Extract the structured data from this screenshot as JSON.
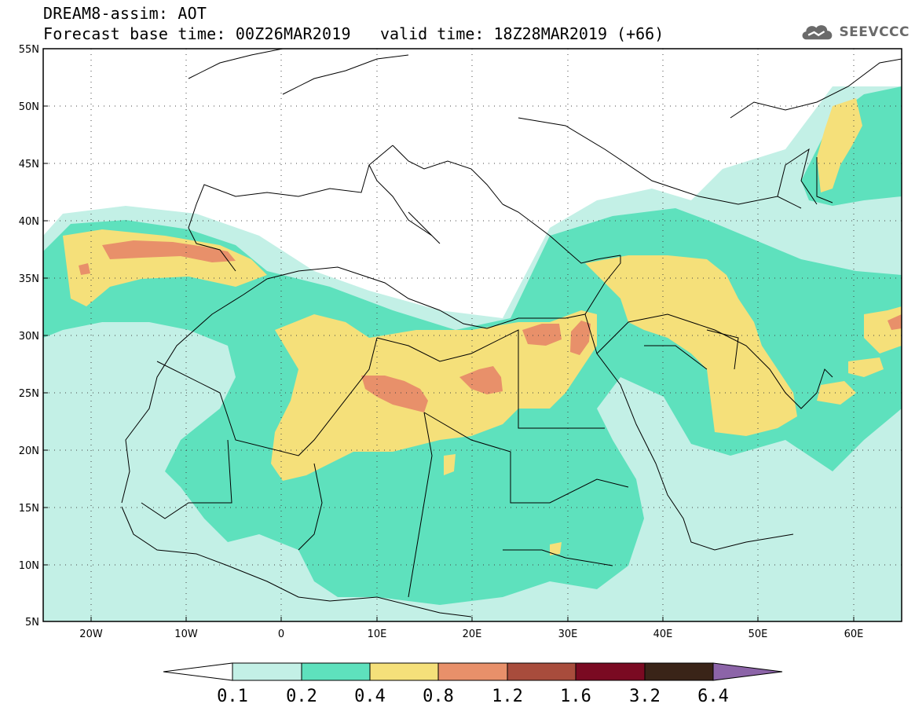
{
  "header": {
    "title": "DREAM8-assim: AOT",
    "base_time": "Forecast base time: 00Z26MAR2019",
    "valid_time": "valid time: 18Z28MAR2019 (+66)",
    "logo_text": "SEEVCCC"
  },
  "map": {
    "lon_range": [
      -25,
      65
    ],
    "lat_range": [
      5,
      55
    ],
    "lat_ticks": [
      "5N",
      "10N",
      "15N",
      "20N",
      "25N",
      "30N",
      "35N",
      "40N",
      "45N",
      "50N",
      "55N"
    ],
    "lon_ticks": [
      "20W",
      "10W",
      "0",
      "10E",
      "20E",
      "30E",
      "40E",
      "50E",
      "60E"
    ],
    "gridlines": "dotted",
    "field": "Aerosol Optical Thickness (dust)"
  },
  "colorbar": {
    "labels": [
      "0.1",
      "0.2",
      "0.4",
      "0.8",
      "1.2",
      "1.6",
      "3.2",
      "6.4"
    ],
    "colors": [
      "#c3f0e6",
      "#5ee1bd",
      "#f5e07a",
      "#e8906a",
      "#a84c3c",
      "#7a0a22",
      "#3a2418",
      "#8c64a8"
    ],
    "under_color": "#ffffff"
  }
}
